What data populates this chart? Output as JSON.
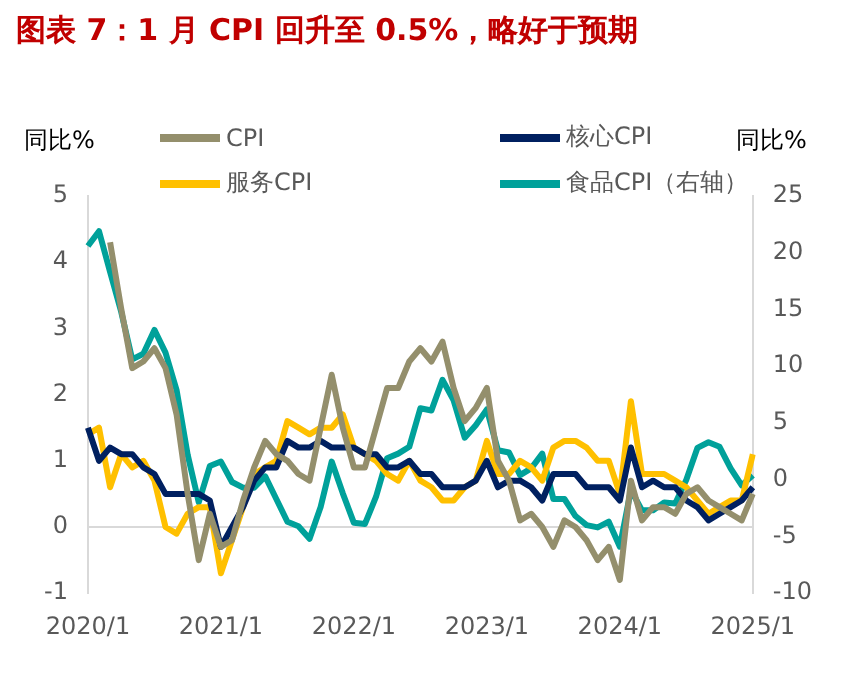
{
  "chart_data": {
    "type": "line",
    "title": "图表 7：1 月 CPI 回升至 0.5%，略好于预期",
    "ylabel": "同比%",
    "y2label": "同比%",
    "categories": [
      "2020/1",
      null,
      null,
      null,
      null,
      null,
      null,
      null,
      null,
      null,
      null,
      null,
      "2021/1",
      null,
      null,
      null,
      null,
      null,
      null,
      null,
      null,
      null,
      null,
      null,
      "2022/1",
      null,
      null,
      null,
      null,
      null,
      null,
      null,
      null,
      null,
      null,
      null,
      "2023/1",
      null,
      null,
      null,
      null,
      null,
      null,
      null,
      null,
      null,
      null,
      null,
      "2024/1",
      null,
      null,
      null,
      null,
      null,
      null,
      null,
      null,
      null,
      null,
      null,
      "2025/1"
    ],
    "series": [
      {
        "name": "CPI",
        "color": "#948f6c",
        "values": [
          null,
          null,
          4.3,
          3.3,
          2.4,
          2.5,
          2.7,
          2.4,
          1.7,
          0.5,
          -0.5,
          0.2,
          -0.3,
          -0.2,
          0.4,
          0.9,
          1.3,
          1.1,
          1.0,
          0.8,
          0.7,
          1.5,
          2.3,
          1.5,
          0.9,
          0.9,
          1.5,
          2.1,
          2.1,
          2.5,
          2.7,
          2.5,
          2.8,
          2.1,
          1.6,
          1.8,
          2.1,
          1.0,
          0.7,
          0.1,
          0.2,
          0.0,
          -0.3,
          0.1,
          0.0,
          -0.2,
          -0.5,
          -0.3,
          -0.8,
          0.7,
          0.1,
          0.3,
          0.3,
          0.2,
          0.5,
          0.6,
          0.4,
          0.3,
          0.2,
          0.1,
          0.5
        ]
      },
      {
        "name": "核心CPI",
        "color": "#002060",
        "values": [
          1.5,
          1.0,
          1.2,
          1.1,
          1.1,
          0.9,
          0.8,
          0.5,
          0.5,
          0.5,
          0.5,
          0.4,
          -0.3,
          0.0,
          0.3,
          0.7,
          0.9,
          0.9,
          1.3,
          1.2,
          1.2,
          1.3,
          1.2,
          1.2,
          1.2,
          1.1,
          1.1,
          0.9,
          0.9,
          1.0,
          0.8,
          0.8,
          0.6,
          0.6,
          0.6,
          0.7,
          1.0,
          0.6,
          0.7,
          0.7,
          0.6,
          0.4,
          0.8,
          0.8,
          0.8,
          0.6,
          0.6,
          0.6,
          0.4,
          1.2,
          0.6,
          0.7,
          0.6,
          0.6,
          0.4,
          0.3,
          0.1,
          0.2,
          0.3,
          0.4,
          0.6
        ]
      },
      {
        "name": "服务CPI",
        "color": "#ffc000",
        "values": [
          1.4,
          1.5,
          0.6,
          1.1,
          0.9,
          1.0,
          0.7,
          0.0,
          -0.1,
          0.2,
          0.3,
          0.3,
          -0.7,
          -0.2,
          0.3,
          0.8,
          0.9,
          1.0,
          1.6,
          1.5,
          1.4,
          1.5,
          1.5,
          1.7,
          1.2,
          1.1,
          1.0,
          0.8,
          0.7,
          1.0,
          0.7,
          0.6,
          0.4,
          0.4,
          0.6,
          0.7,
          1.3,
          0.8,
          0.8,
          1.0,
          0.9,
          0.7,
          1.2,
          1.3,
          1.3,
          1.2,
          1.0,
          1.0,
          0.5,
          1.9,
          0.8,
          0.8,
          0.8,
          0.7,
          0.6,
          0.4,
          0.2,
          0.3,
          0.4,
          0.4,
          1.1
        ]
      },
      {
        "name": "食品CPI（右轴）",
        "color": "#00a19a",
        "axis": "y2",
        "values": [
          20.6,
          21.9,
          18.3,
          14.8,
          10.6,
          11.1,
          13.2,
          11.2,
          7.9,
          2.2,
          -2.0,
          1.2,
          1.6,
          -0.2,
          -0.7,
          -0.7,
          0.3,
          -1.7,
          -3.7,
          -4.1,
          -5.2,
          -2.4,
          1.6,
          -1.2,
          -3.8,
          -3.9,
          -1.5,
          1.9,
          2.3,
          2.9,
          6.3,
          6.1,
          8.8,
          7.0,
          3.7,
          4.8,
          6.2,
          2.6,
          2.4,
          0.4,
          1.0,
          2.3,
          -1.7,
          -1.7,
          -3.2,
          -4.0,
          -4.2,
          -3.7,
          -5.9,
          -0.9,
          -2.7,
          -2.7,
          -2.0,
          -2.1,
          0.0,
          2.8,
          3.3,
          2.9,
          1.0,
          -0.5,
          0.4
        ]
      }
    ],
    "ylim": [
      -1,
      5
    ],
    "yticks": [
      -1,
      0,
      1,
      2,
      3,
      4,
      5
    ],
    "y2lim": [
      -10,
      25
    ],
    "y2ticks": [
      -10,
      -5,
      0,
      5,
      10,
      15,
      20,
      25
    ],
    "ref_lines": [
      {
        "axis": "y",
        "value": 0,
        "color": "#d9d9d9"
      }
    ],
    "grid": false,
    "legend": "top",
    "marker": "none",
    "line_style": "solid"
  }
}
